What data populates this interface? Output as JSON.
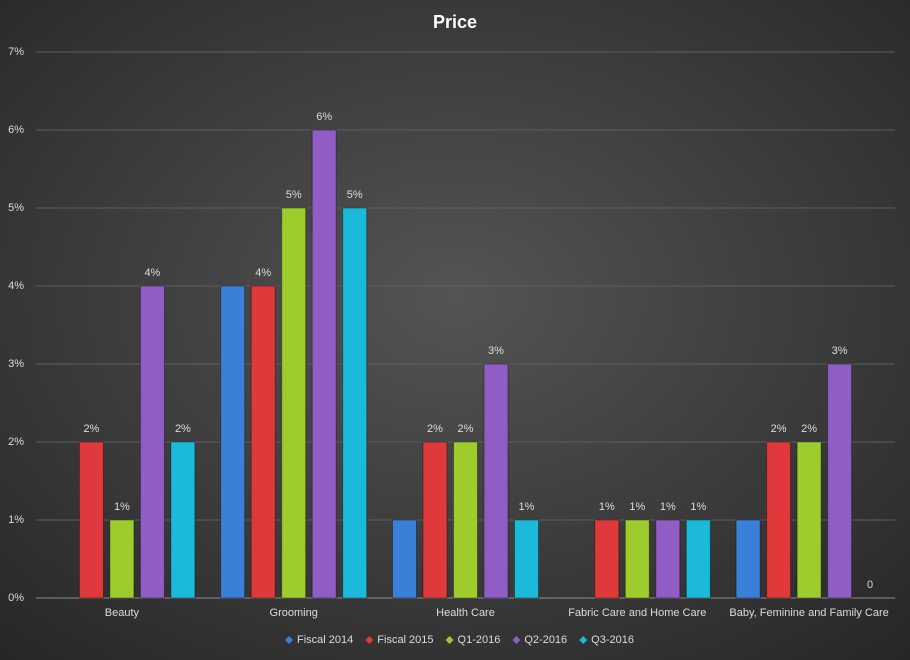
{
  "chart_data": {
    "type": "bar",
    "title": "Price",
    "categories": [
      "Beauty",
      "Grooming",
      "Health Care",
      "Fabric Care and Home Care",
      "Baby, Feminine and Family Care"
    ],
    "series": [
      {
        "name": "Fiscal 2014",
        "color": "#3a7fd8",
        "values": [
          null,
          4,
          1,
          null,
          1
        ]
      },
      {
        "name": "Fiscal 2015",
        "color": "#e0393b",
        "values": [
          2,
          4,
          2,
          1,
          2
        ],
        "value_labels": [
          "2%",
          "4%",
          "2%",
          "1%",
          "2%"
        ]
      },
      {
        "name": "Q1-2016",
        "color": "#9dcc2c",
        "values": [
          1,
          5,
          2,
          1,
          2
        ],
        "value_labels": [
          "1%",
          "5%",
          "2%",
          "1%",
          "2%"
        ]
      },
      {
        "name": "Q2-2016",
        "color": "#8f5dc4",
        "values": [
          4,
          6,
          3,
          1,
          3
        ],
        "value_labels": [
          "4%",
          "6%",
          "3%",
          "1%",
          "3%"
        ]
      },
      {
        "name": "Q3-2016",
        "color": "#1bbadb",
        "values": [
          2,
          5,
          1,
          1,
          0
        ],
        "value_labels": [
          "2%",
          "5%",
          "1%",
          "1%",
          "0"
        ]
      }
    ],
    "ylim": [
      0,
      7
    ],
    "yticks": [
      {
        "value": 0,
        "label": "0%"
      },
      {
        "value": 1,
        "label": "1%"
      },
      {
        "value": 2,
        "label": "2%"
      },
      {
        "value": 3,
        "label": "3%"
      },
      {
        "value": 4,
        "label": "4%"
      },
      {
        "value": 5,
        "label": "5%"
      },
      {
        "value": 6,
        "label": "6%"
      },
      {
        "value": 7,
        "label": "7%"
      }
    ],
    "grid": true,
    "legend": "bottom"
  }
}
